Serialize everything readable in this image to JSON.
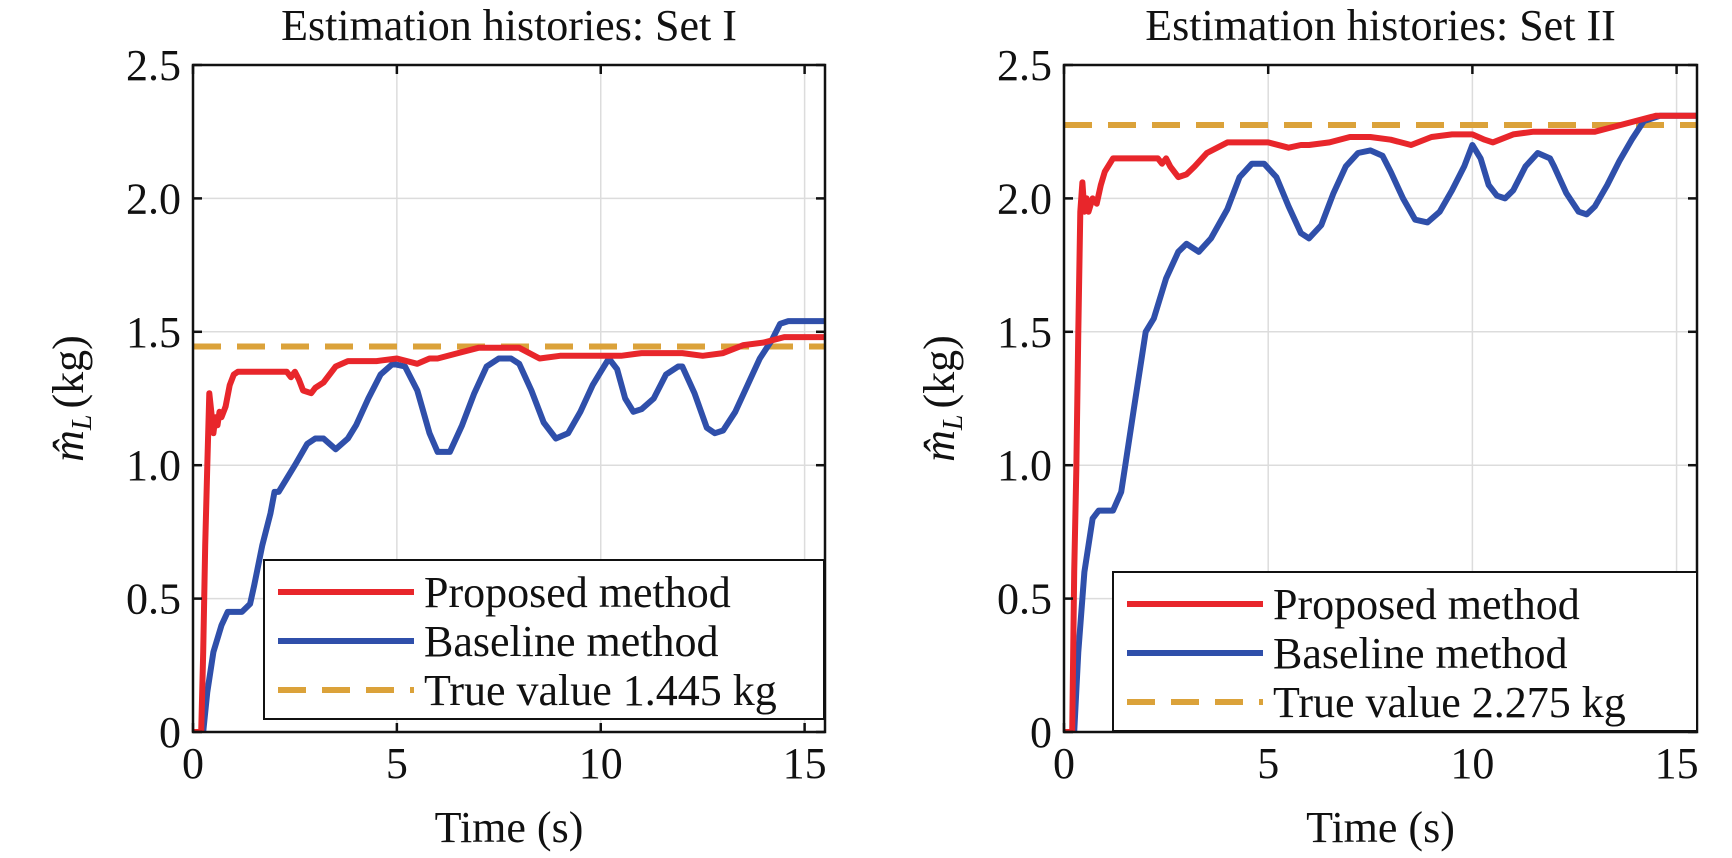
{
  "colors": {
    "proposed": "#e8262b",
    "baseline": "#2f4faa",
    "true_value": "#dba23a",
    "grid": "#dcdcdc",
    "axis": "#111111"
  },
  "chart_data": [
    {
      "type": "line",
      "title": "Estimation histories: Set I",
      "xlabel": "Time (s)",
      "ylabel_symbol": "m̂",
      "ylabel_subscript": "L",
      "ylabel_unit": "(kg)",
      "xlim": [
        0,
        15.5
      ],
      "ylim": [
        0,
        2.5
      ],
      "xticks": [
        0,
        5,
        10,
        15
      ],
      "xtick_labels": [
        "0",
        "5",
        "10",
        "15"
      ],
      "yticks": [
        0,
        0.5,
        1.0,
        1.5,
        2.0,
        2.5
      ],
      "ytick_labels": [
        "0",
        "0.5",
        "1.0",
        "1.5",
        "2.0",
        "2.5"
      ],
      "grid": true,
      "legend_position": "bottom-right",
      "series": [
        {
          "name": "Proposed method",
          "key": "proposed",
          "style": "solid",
          "x": [
            0,
            0.2,
            0.25,
            0.3,
            0.35,
            0.4,
            0.45,
            0.5,
            0.55,
            0.6,
            0.65,
            0.7,
            0.8,
            0.9,
            1.0,
            1.1,
            1.3,
            1.6,
            2.0,
            2.3,
            2.4,
            2.5,
            2.6,
            2.7,
            2.9,
            3.0,
            3.2,
            3.5,
            3.8,
            4.0,
            4.5,
            5.0,
            5.5,
            5.8,
            6.0,
            6.5,
            7.0,
            7.5,
            8.0,
            8.5,
            9.0,
            9.5,
            10.0,
            10.5,
            11.0,
            11.5,
            12.0,
            12.5,
            13.0,
            13.5,
            14.0,
            14.5,
            15.0,
            15.5
          ],
          "y": [
            0,
            0,
            0.3,
            0.7,
            1.0,
            1.27,
            1.2,
            1.12,
            1.18,
            1.15,
            1.2,
            1.18,
            1.22,
            1.3,
            1.34,
            1.35,
            1.35,
            1.35,
            1.35,
            1.35,
            1.33,
            1.35,
            1.32,
            1.28,
            1.27,
            1.29,
            1.31,
            1.37,
            1.39,
            1.39,
            1.39,
            1.4,
            1.38,
            1.4,
            1.4,
            1.42,
            1.44,
            1.44,
            1.44,
            1.4,
            1.41,
            1.41,
            1.41,
            1.41,
            1.42,
            1.42,
            1.42,
            1.41,
            1.42,
            1.45,
            1.46,
            1.48,
            1.48,
            1.48
          ]
        },
        {
          "name": "Baseline method",
          "key": "baseline",
          "style": "solid",
          "x": [
            0,
            0.25,
            0.35,
            0.5,
            0.7,
            0.85,
            1.0,
            1.2,
            1.4,
            1.5,
            1.7,
            1.9,
            2.0,
            2.1,
            2.3,
            2.5,
            2.8,
            3.0,
            3.2,
            3.5,
            3.8,
            4.0,
            4.3,
            4.6,
            4.9,
            5.2,
            5.5,
            5.8,
            6.0,
            6.3,
            6.6,
            6.9,
            7.2,
            7.5,
            7.8,
            8.0,
            8.3,
            8.6,
            8.9,
            9.2,
            9.5,
            9.8,
            10.0,
            10.2,
            10.4,
            10.6,
            10.8,
            11.0,
            11.3,
            11.6,
            11.9,
            12.0,
            12.3,
            12.6,
            12.8,
            13.0,
            13.3,
            13.6,
            13.9,
            14.2,
            14.4,
            14.6,
            15.0,
            15.5
          ],
          "y": [
            0,
            0,
            0.15,
            0.3,
            0.4,
            0.45,
            0.45,
            0.45,
            0.48,
            0.55,
            0.7,
            0.82,
            0.9,
            0.9,
            0.95,
            1.0,
            1.08,
            1.1,
            1.1,
            1.06,
            1.1,
            1.15,
            1.25,
            1.34,
            1.38,
            1.37,
            1.28,
            1.12,
            1.05,
            1.05,
            1.15,
            1.27,
            1.37,
            1.4,
            1.4,
            1.38,
            1.28,
            1.16,
            1.1,
            1.12,
            1.2,
            1.3,
            1.35,
            1.4,
            1.36,
            1.25,
            1.2,
            1.21,
            1.25,
            1.34,
            1.37,
            1.37,
            1.27,
            1.14,
            1.12,
            1.13,
            1.2,
            1.3,
            1.4,
            1.47,
            1.53,
            1.54,
            1.54,
            1.54
          ]
        },
        {
          "name": "True value 1.445 kg",
          "key": "true_value",
          "style": "dashed",
          "x": [
            0,
            15.5
          ],
          "y": [
            1.445,
            1.445
          ]
        }
      ]
    },
    {
      "type": "line",
      "title": "Estimation histories: Set II",
      "xlabel": "Time (s)",
      "ylabel_symbol": "m̂",
      "ylabel_subscript": "L",
      "ylabel_unit": "(kg)",
      "xlim": [
        0,
        15.5
      ],
      "ylim": [
        0,
        2.5
      ],
      "xticks": [
        0,
        5,
        10,
        15
      ],
      "xtick_labels": [
        "0",
        "5",
        "10",
        "15"
      ],
      "yticks": [
        0,
        0.5,
        1.0,
        1.5,
        2.0,
        2.5
      ],
      "ytick_labels": [
        "0",
        "0.5",
        "1.0",
        "1.5",
        "2.0",
        "2.5"
      ],
      "grid": true,
      "legend_position": "bottom-right",
      "series": [
        {
          "name": "Proposed method",
          "key": "proposed",
          "style": "solid",
          "x": [
            0,
            0.2,
            0.25,
            0.3,
            0.35,
            0.4,
            0.45,
            0.5,
            0.55,
            0.6,
            0.7,
            0.8,
            0.9,
            1.0,
            1.2,
            1.6,
            2.0,
            2.3,
            2.4,
            2.5,
            2.6,
            2.8,
            3.0,
            3.2,
            3.5,
            4.0,
            4.5,
            5.0,
            5.5,
            5.8,
            6.0,
            6.5,
            7.0,
            7.5,
            8.0,
            8.5,
            9.0,
            9.5,
            10.0,
            10.3,
            10.5,
            11.0,
            11.5,
            12.0,
            12.5,
            13.0,
            13.5,
            14.0,
            14.5,
            15.0,
            15.5
          ],
          "y": [
            0,
            0,
            0.6,
            0.98,
            1.5,
            1.95,
            2.06,
            1.95,
            2.0,
            1.95,
            2.0,
            1.98,
            2.05,
            2.1,
            2.15,
            2.15,
            2.15,
            2.15,
            2.13,
            2.15,
            2.12,
            2.08,
            2.09,
            2.12,
            2.17,
            2.21,
            2.21,
            2.21,
            2.19,
            2.2,
            2.2,
            2.21,
            2.23,
            2.23,
            2.22,
            2.2,
            2.23,
            2.24,
            2.24,
            2.22,
            2.21,
            2.24,
            2.25,
            2.25,
            2.25,
            2.25,
            2.27,
            2.29,
            2.31,
            2.31,
            2.31
          ]
        },
        {
          "name": "Baseline method",
          "key": "baseline",
          "style": "solid",
          "x": [
            0,
            0.25,
            0.35,
            0.5,
            0.7,
            0.85,
            1.0,
            1.2,
            1.4,
            1.5,
            1.7,
            1.9,
            2.0,
            2.2,
            2.5,
            2.8,
            3.0,
            3.3,
            3.6,
            4.0,
            4.3,
            4.6,
            4.9,
            5.2,
            5.5,
            5.8,
            6.0,
            6.3,
            6.6,
            6.9,
            7.2,
            7.5,
            7.8,
            8.0,
            8.3,
            8.6,
            8.9,
            9.2,
            9.5,
            9.8,
            10.0,
            10.2,
            10.4,
            10.6,
            10.8,
            11.0,
            11.3,
            11.6,
            11.9,
            12.0,
            12.3,
            12.6,
            12.8,
            13.0,
            13.3,
            13.6,
            13.9,
            14.2,
            14.4,
            14.6,
            15.0,
            15.5
          ],
          "y": [
            0,
            0,
            0.3,
            0.6,
            0.8,
            0.83,
            0.83,
            0.83,
            0.9,
            1.0,
            1.2,
            1.4,
            1.5,
            1.55,
            1.7,
            1.8,
            1.83,
            1.8,
            1.85,
            1.96,
            2.08,
            2.13,
            2.13,
            2.08,
            1.97,
            1.87,
            1.85,
            1.9,
            2.02,
            2.12,
            2.17,
            2.18,
            2.16,
            2.1,
            2.0,
            1.92,
            1.91,
            1.95,
            2.03,
            2.12,
            2.2,
            2.15,
            2.05,
            2.01,
            2.0,
            2.03,
            2.12,
            2.17,
            2.15,
            2.12,
            2.02,
            1.95,
            1.94,
            1.97,
            2.05,
            2.14,
            2.22,
            2.29,
            2.3,
            2.31,
            2.31,
            2.31
          ]
        },
        {
          "name": "True value 2.275 kg",
          "key": "true_value",
          "style": "dashed",
          "x": [
            0,
            15.5
          ],
          "y": [
            2.275,
            2.275
          ]
        }
      ]
    }
  ]
}
